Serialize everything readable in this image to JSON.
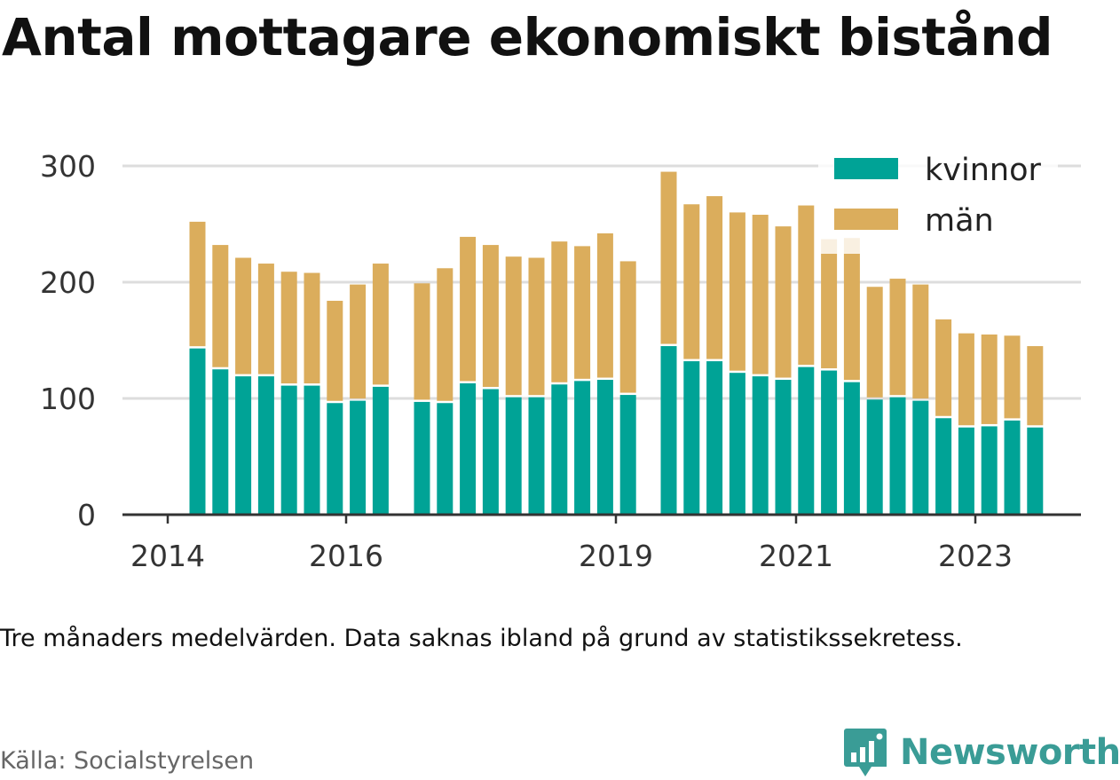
{
  "title": "Antal mottagare ekonomiskt bistånd",
  "note": "Tre månaders medelvärden. Data saknas ibland på grund av statistikssekretess.",
  "source": "Källa: Socialstyrelsen",
  "brand": {
    "name": "Newsworthy",
    "icon": "newsworthy-logo-icon"
  },
  "colors": {
    "kvinnor": "#00a396",
    "man": "#dbad5c",
    "grid": "#dddddd",
    "axis": "#333333"
  },
  "chart_data": {
    "type": "bar",
    "stacked": true,
    "title": "Antal mottagare ekonomiskt bistånd",
    "x_ticks": [
      "2014",
      "2016",
      "2019",
      "2021",
      "2023"
    ],
    "y_ticks": [
      0,
      100,
      200,
      300
    ],
    "ylim": [
      0,
      300
    ],
    "grid": true,
    "legend_position": "top-right",
    "series": [
      {
        "name": "kvinnor",
        "color": "#00a396",
        "values": [
          [
            143,
            125,
            119,
            119,
            111,
            111,
            96,
            98,
            110
          ],
          [
            97,
            96,
            113,
            108,
            101,
            101,
            112,
            115,
            116,
            103
          ],
          [
            145,
            132,
            132,
            122,
            119,
            116,
            127,
            124,
            114,
            99,
            101,
            98,
            83,
            75,
            76,
            81,
            75
          ]
        ]
      },
      {
        "name": "män",
        "color": "#dbad5c",
        "values": [
          [
            109,
            107,
            102,
            97,
            98,
            97,
            88,
            100,
            106
          ],
          [
            102,
            116,
            126,
            124,
            121,
            120,
            123,
            116,
            126,
            115
          ],
          [
            150,
            135,
            142,
            138,
            139,
            132,
            139,
            113,
            124,
            97,
            102,
            100,
            85,
            81,
            79,
            73,
            70
          ]
        ]
      }
    ]
  }
}
